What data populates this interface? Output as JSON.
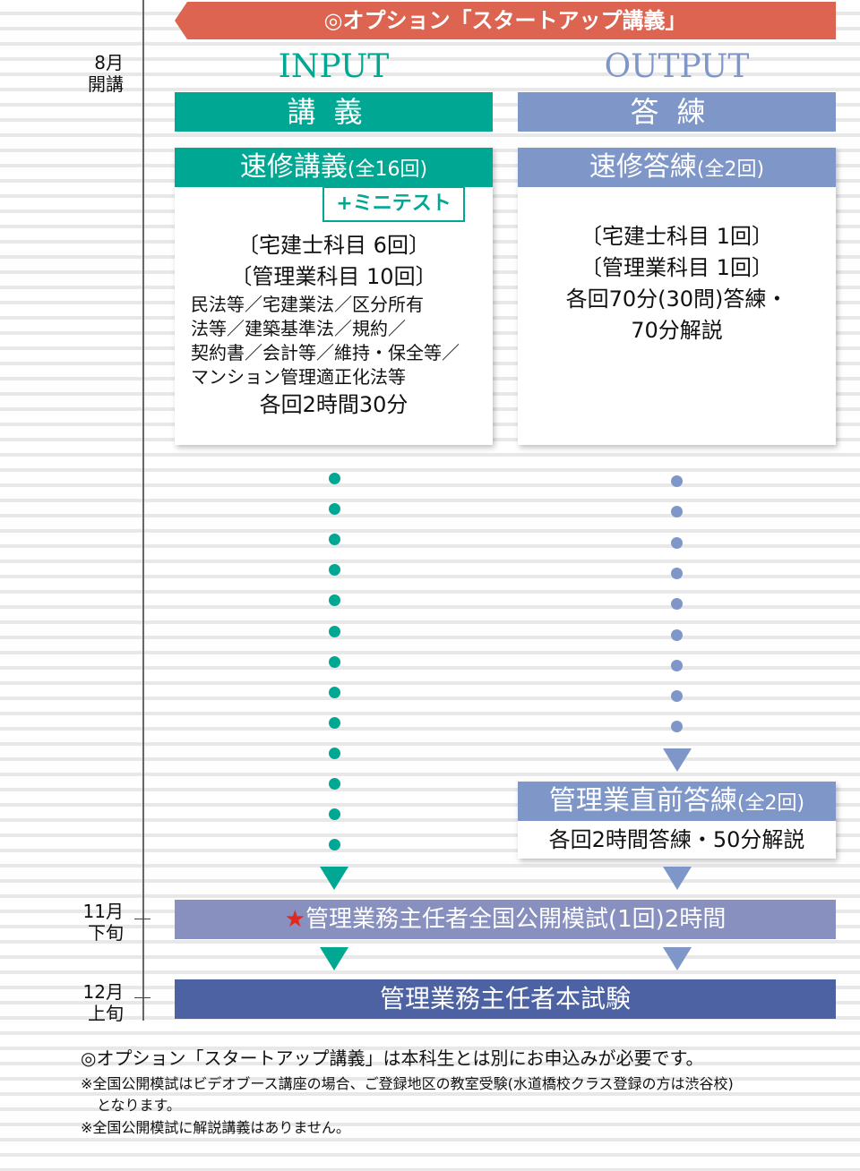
{
  "banner": "◎オプション「スタートアップ講義」",
  "timeline": [
    {
      "month": "8月",
      "sub": "開講"
    },
    {
      "month": "11月",
      "sub": "下旬"
    },
    {
      "month": "12月",
      "sub": "上旬"
    }
  ],
  "input": {
    "heading": "INPUT",
    "bar": "講義",
    "card_title": "速修講義",
    "card_count": "(全16回)",
    "badge": "+ミニテスト",
    "lines": [
      "〔宅建士科目 6回〕",
      "〔管理業科目 10回〕"
    ],
    "small_lines": [
      "民法等／宅建業法／区分所有",
      "法等／建築基準法／規約／",
      "契約書／会計等／維持・保全等／",
      "マンション管理適正化法等"
    ],
    "duration": "各回2時間30分"
  },
  "output": {
    "heading": "OUTPUT",
    "bar": "答練",
    "card_title": "速修答練",
    "card_count": "(全2回)",
    "lines": [
      "〔宅建士科目 1回〕",
      "〔管理業科目 1回〕",
      "各回70分(30問)答練・",
      "70分解説"
    ],
    "card2_title": "管理業直前答練",
    "card2_count": "(全2回)",
    "card2_body": "各回2時間答練・50分解説"
  },
  "mock_exam": {
    "star": "★",
    "label": "管理業務主任者全国公開模試(1回)2時間"
  },
  "final_exam": "管理業務主任者本試験",
  "notes": [
    "◎オプション「スタートアップ講義」は本科生とは別にお申込みが必要です。",
    "※全国公開模試はビデオブース講座の場合、ご登録地区の教室受験(水道橋校クラス登録の方は渋谷校)",
    "となります。",
    "※全国公開模試に解説講義はありません。"
  ],
  "colors": {
    "banner": "#dd6450",
    "input": "#00a893",
    "output": "#7f97c8",
    "mock": "#8890c0",
    "final": "#4d62a3"
  }
}
